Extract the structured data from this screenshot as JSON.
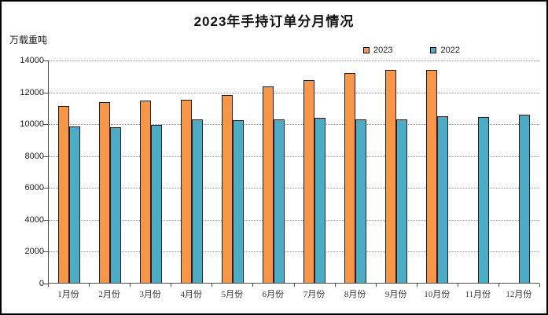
{
  "window": {
    "background": "#ffffff",
    "frame_border_color": "#000000"
  },
  "chart_data": {
    "type": "bar",
    "title": "2023年手持订单分月情况",
    "ylabel": "万载重吨",
    "xlabel": "",
    "categories": [
      "1月份",
      "2月份",
      "3月份",
      "4月份",
      "5月份",
      "6月份",
      "7月份",
      "8月份",
      "9月份",
      "10月份",
      "11月份",
      "12月份"
    ],
    "series": [
      {
        "name": "2023",
        "color": "#F79646",
        "values": [
          11110,
          11340,
          11430,
          11480,
          11790,
          12330,
          12740,
          13150,
          13370,
          13350,
          null,
          null
        ]
      },
      {
        "name": "2022",
        "color": "#4BACC6",
        "values": [
          9800,
          9760,
          9890,
          10250,
          10200,
          10260,
          10370,
          10230,
          10260,
          10450,
          10390,
          10550
        ]
      }
    ],
    "ylim": [
      0,
      14000
    ],
    "yticks": [
      0,
      2000,
      4000,
      6000,
      8000,
      10000,
      12000,
      14000
    ],
    "grid": "horizontal-dotted",
    "legend_position": "top-right",
    "bar_border_color": "#1f1f1f",
    "gridline_color": "#8c8c8c",
    "axis_color": "#4d4d4d"
  }
}
